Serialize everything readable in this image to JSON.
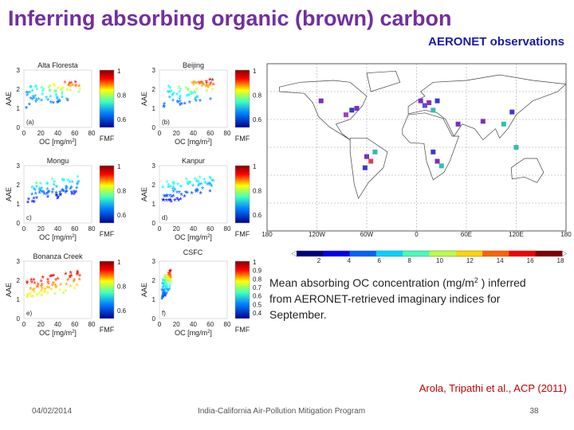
{
  "header": {
    "title": "Inferring absorbing organic (brown) carbon",
    "subtitle": "AERONET observations"
  },
  "panels": [
    {
      "site": "Alta Floresta",
      "letter": "(a)"
    },
    {
      "site": "Beijing",
      "letter": "(b)"
    },
    {
      "site": "Mongu",
      "letter": "c)"
    },
    {
      "site": "Kanpur",
      "letter": "d)"
    },
    {
      "site": "Bonanza Creek",
      "letter": "e)"
    },
    {
      "letter": "f)"
    }
  ],
  "panel_axes": {
    "x_label": "OC [mg/m",
    "x_label_sup": "2",
    "x_label_end": "]",
    "y_label": "AAE",
    "x_ticks": [
      "0",
      "20",
      "40",
      "60",
      "80"
    ],
    "y_ticks": [
      "0",
      "1",
      "2",
      "3"
    ],
    "cbar_label": "FMF",
    "cbar_ticks": [
      "1",
      "0.8",
      "0.6"
    ]
  },
  "panel_f_cbar_ticks": [
    "1",
    "0.9",
    "0.8",
    "0.7",
    "0.6",
    "0.5",
    "0.4"
  ],
  "extra_label": "CSFC",
  "map": {
    "lon_ticks": [
      "180",
      "120W",
      "60W",
      "0",
      "60E",
      "120E",
      "180"
    ],
    "cbar_ticks": [
      "2",
      "4",
      "6",
      "8",
      "10",
      "12",
      "14",
      "16",
      "18"
    ]
  },
  "caption": {
    "text1": "Mean absorbing OC concentration (mg/m",
    "sup": "2",
    "text2": " ) inferred",
    "line2": "from  AERONET-retrieved imaginary indices for",
    "line3": "September."
  },
  "citation": "Arola, Tripathi et al., ACP (2011)",
  "footer": {
    "date": "04/02/2014",
    "program": "India-California Air-Pollution Mitigation Program",
    "page": "38"
  }
}
